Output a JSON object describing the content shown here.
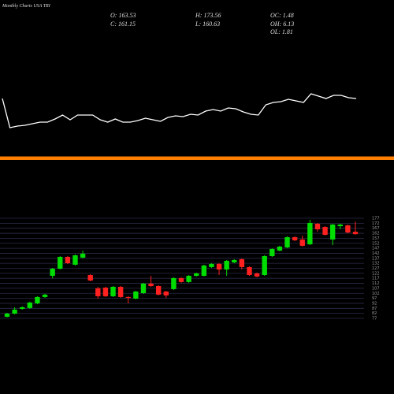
{
  "header": {
    "title": "Monthly Charts USA TRI",
    "stats": [
      "O: 163.53",
      "H: 173.56",
      "OC: 1.48",
      "C: 161.15",
      "L: 160.63",
      "OH: 6.13",
      "OL: 1.81"
    ]
  },
  "chart_data": [
    {
      "type": "line",
      "color": "#ffffff",
      "ylim": [
        0,
        200
      ],
      "values": [
        75,
        38,
        40,
        41,
        43,
        45,
        45,
        49,
        54,
        48,
        54,
        54,
        54,
        48,
        45,
        49,
        45,
        45,
        47,
        50,
        48,
        46,
        51,
        53,
        52,
        55,
        54,
        59,
        61,
        59,
        63,
        62,
        58,
        55,
        54,
        67,
        70,
        71,
        74,
        72,
        70,
        81,
        78,
        75,
        79,
        79,
        76,
        75
      ]
    },
    {
      "type": "candlestick",
      "up_color": "#00dd00",
      "down_color": "#ff2020",
      "grid": true,
      "ylim": [
        77,
        177
      ],
      "yticks": [
        177,
        172,
        167,
        162,
        157,
        152,
        147,
        142,
        137,
        132,
        127,
        122,
        117,
        112,
        107,
        102,
        97,
        92,
        87,
        82,
        77
      ],
      "open": [
        78.6,
        81.7,
        86.5,
        87.3,
        92.0,
        98.3,
        119.5,
        126.6,
        138.4,
        130.6,
        137.7,
        120.3,
        107.0,
        107.7,
        99.1,
        108.5,
        98.3,
        96.7,
        102.2,
        111.7,
        109.3,
        103.8,
        106.2,
        117.2,
        113.3,
        119.5,
        119.5,
        128.2,
        131.4,
        125.8,
        132.9,
        136.1,
        128.2,
        121.9,
        120.3,
        139.2,
        144.7,
        147.9,
        158.1,
        155.8,
        151.0,
        171.5,
        168.3,
        155.8,
        169.1,
        169.9,
        163.53
      ],
      "high": [
        82.5,
        88.1,
        88.9,
        93.6,
        99.1,
        101.5,
        127.4,
        139.2,
        139.2,
        140.8,
        144.7,
        121.1,
        108.5,
        108.5,
        109.3,
        109.3,
        99.1,
        104.6,
        112.5,
        119.5,
        110.1,
        104.6,
        118.0,
        118.0,
        120.3,
        122.7,
        130.6,
        132.1,
        132.1,
        135.3,
        136.1,
        136.9,
        129.0,
        122.7,
        140.0,
        147.1,
        149.5,
        158.9,
        158.9,
        159.7,
        175.4,
        172.3,
        169.1,
        171.5,
        171.5,
        170.7,
        173.56
      ],
      "low": [
        78.0,
        81.0,
        85.7,
        86.5,
        91.2,
        97.5,
        117.0,
        125.8,
        131.4,
        129.8,
        136.9,
        114.0,
        96.7,
        98.3,
        98.3,
        97.5,
        92.0,
        96.0,
        101.5,
        108.5,
        99.9,
        97.5,
        105.4,
        112.5,
        112.5,
        118.7,
        118.7,
        127.4,
        120.3,
        119.5,
        132.1,
        125.8,
        119.5,
        118.0,
        119.5,
        138.4,
        144.0,
        147.1,
        154.2,
        148.7,
        150.2,
        163.7,
        159.7,
        150.2,
        166.0,
        162.0,
        160.63
      ],
      "close": [
        81.7,
        85.7,
        88.1,
        92.8,
        98.3,
        100.7,
        126.6,
        138.4,
        132.1,
        140.0,
        141.6,
        114.8,
        99.1,
        99.1,
        108.5,
        98.3,
        97.5,
        103.8,
        111.7,
        109.3,
        100.7,
        99.9,
        117.2,
        113.3,
        119.5,
        121.9,
        129.8,
        131.4,
        125.8,
        134.5,
        135.3,
        128.2,
        120.3,
        118.8,
        139.2,
        146.3,
        148.7,
        158.1,
        155.0,
        149.5,
        172.3,
        166.0,
        160.5,
        170.7,
        170.7,
        162.8,
        161.15
      ]
    }
  ]
}
